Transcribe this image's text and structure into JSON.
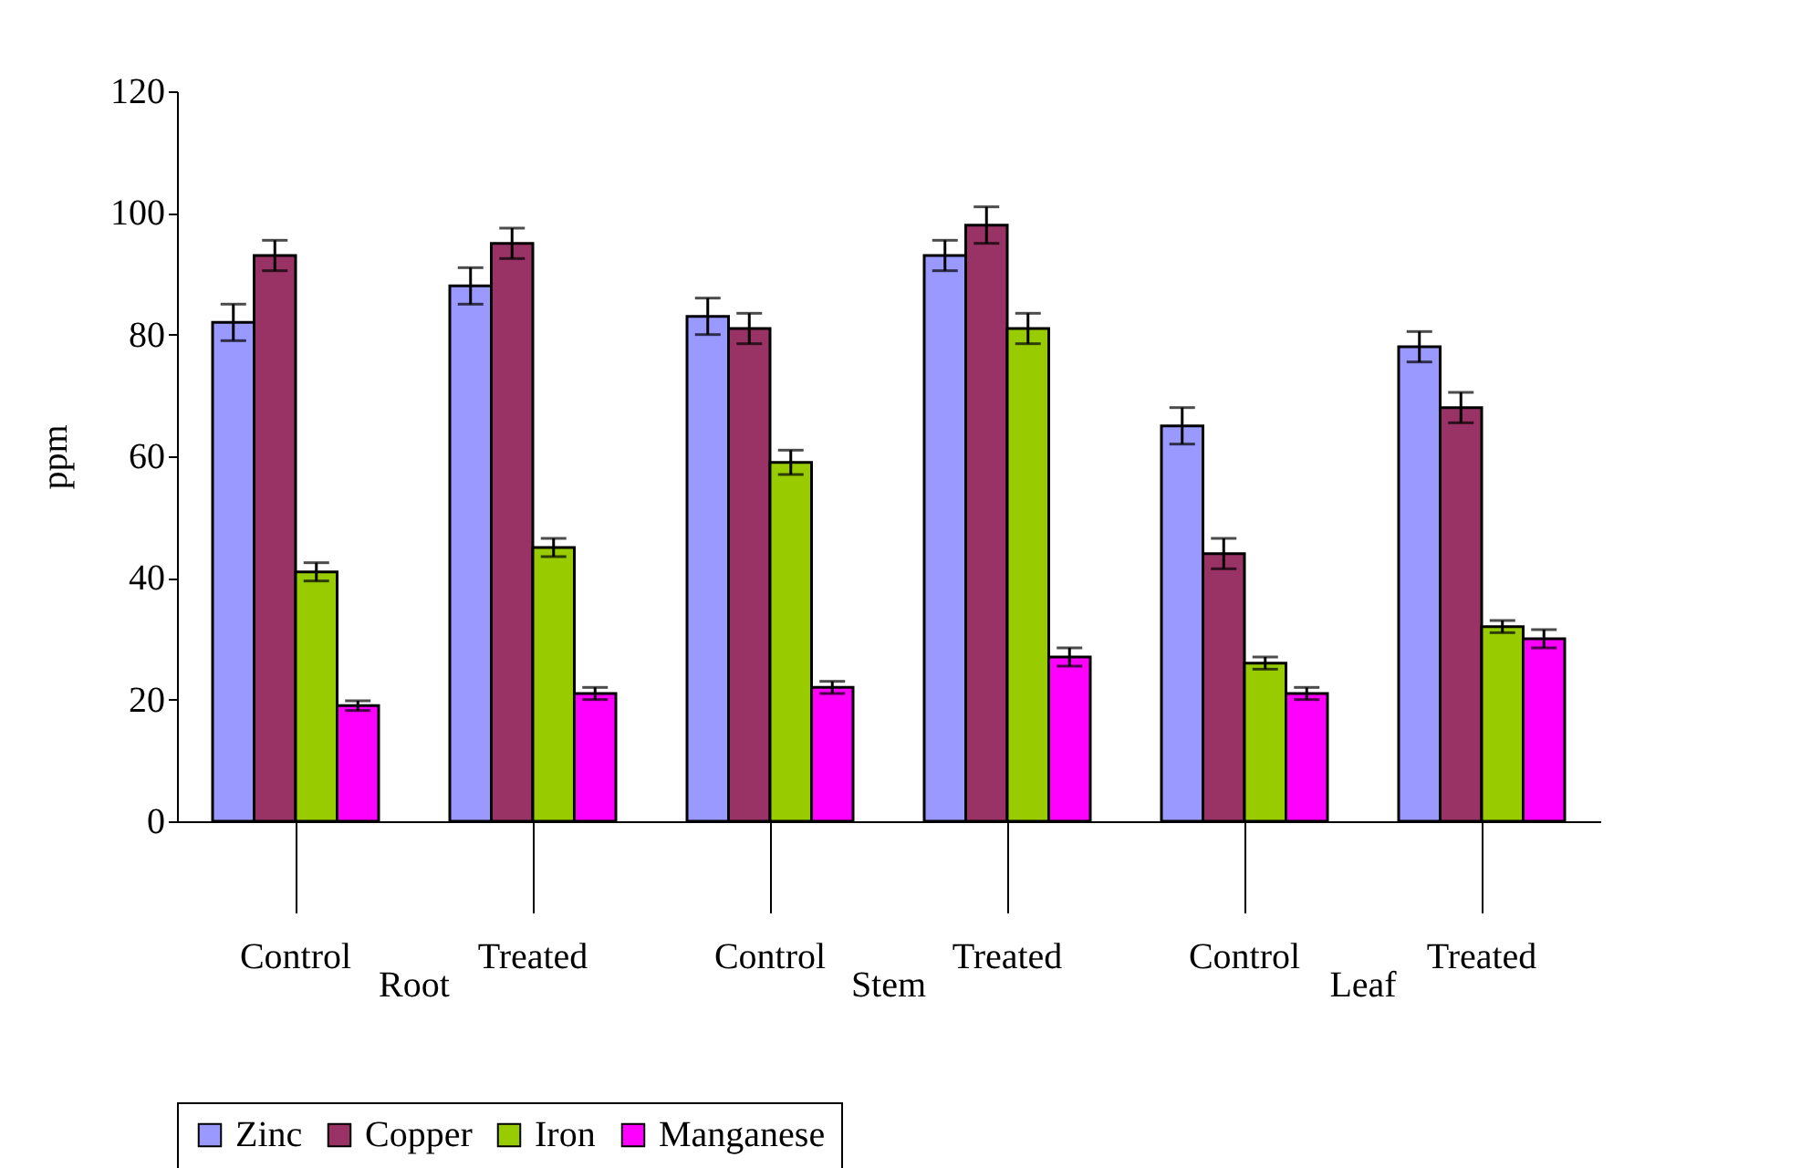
{
  "chart_data": {
    "type": "bar",
    "categories": [
      "Control",
      "Treated",
      "Control",
      "Treated",
      "Control",
      "Treated"
    ],
    "annotations": [
      "Root",
      "Stem",
      "Leaf"
    ],
    "ylabel": "ppm",
    "series": [
      {
        "name": "Zinc",
        "color": "#9999ff",
        "values": [
          82,
          88,
          83,
          93,
          65,
          78
        ],
        "errors": [
          3,
          3,
          3,
          2.5,
          3,
          2.5
        ]
      },
      {
        "name": "Copper",
        "color": "#993366",
        "values": [
          93,
          95,
          81,
          98,
          44,
          68
        ],
        "errors": [
          2.5,
          2.5,
          2.5,
          3,
          2.5,
          2.5
        ]
      },
      {
        "name": "Iron",
        "color": "#99cc00",
        "values": [
          41,
          45,
          59,
          81,
          26,
          32
        ],
        "errors": [
          1.5,
          1.5,
          2,
          2.5,
          1,
          1
        ]
      },
      {
        "name": "Manganese",
        "color": "#ff00ff",
        "values": [
          19,
          21,
          22,
          27,
          21,
          30
        ],
        "errors": [
          0.8,
          1,
          1,
          1.5,
          1,
          1.5
        ]
      }
    ],
    "ylim": [
      0,
      120
    ],
    "yticks": [
      0,
      20,
      40,
      60,
      80,
      100,
      120
    ],
    "grid": false,
    "legend": "bottom"
  }
}
